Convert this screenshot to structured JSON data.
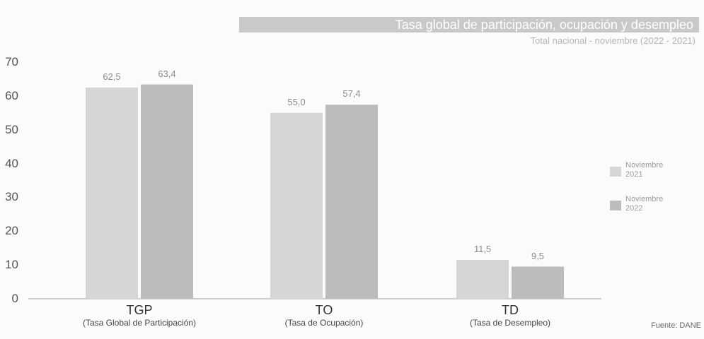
{
  "chart_data": {
    "type": "bar",
    "title": "Tasa global de participación, ocupación y desempleo",
    "subtitle": "Total nacional - noviembre (2022 - 2021)",
    "categories": [
      {
        "code": "TGP",
        "name": "(Tasa Global de Participación)"
      },
      {
        "code": "TO",
        "name": "(Tasa de Ocupación)"
      },
      {
        "code": "TD",
        "name": "(Tasa de Desempleo)"
      }
    ],
    "series": [
      {
        "name": "Noviembre 2021",
        "values": [
          62.5,
          55.0,
          11.5
        ],
        "labels": [
          "62,5",
          "55,0",
          "11,5"
        ],
        "color": "#d6d6d6"
      },
      {
        "name": "Noviembre 2022",
        "values": [
          63.4,
          57.4,
          9.5
        ],
        "labels": [
          "63,4",
          "57,4",
          "9,5"
        ],
        "color": "#bcbcbc"
      }
    ],
    "ylim": [
      0,
      70
    ],
    "yticks": [
      0,
      10,
      20,
      30,
      40,
      50,
      60,
      70
    ],
    "legend_position": "right",
    "grid": false
  },
  "source": "Fuente: DANE"
}
